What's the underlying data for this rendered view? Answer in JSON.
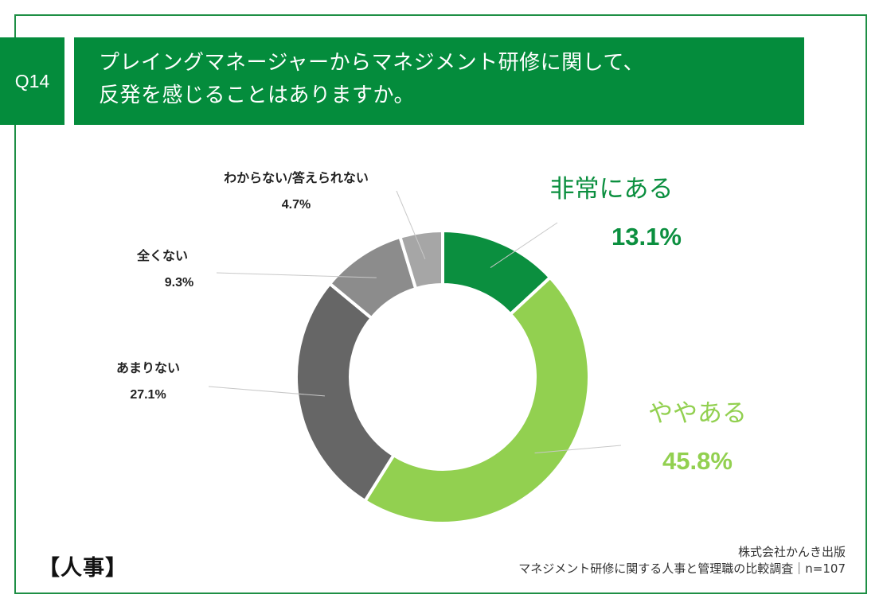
{
  "header": {
    "question_number": "Q14",
    "title_line1": "プレイングマネージャーからマネジメント研修に関して、",
    "title_line2": "反発を感じることはありますか。"
  },
  "footer": {
    "department_tag": "【人事】",
    "source_line1": "株式会社かんき出版",
    "source_line2": "マネジメント研修に関する人事と管理職の比較調査｜n=107"
  },
  "chart_data": {
    "type": "pie",
    "donut": true,
    "title": "",
    "slices": [
      {
        "label": "非常にある",
        "value": 13.1,
        "value_label": "13.1%",
        "color": "#0b8f3f"
      },
      {
        "label": "ややある",
        "value": 45.8,
        "value_label": "45.8%",
        "color": "#92d050"
      },
      {
        "label": "あまりない",
        "value": 27.1,
        "value_label": "27.1%",
        "color": "#666666"
      },
      {
        "label": "全くない",
        "value": 9.3,
        "value_label": "9.3%",
        "color": "#8c8c8c"
      },
      {
        "label": "わからない/答えられない",
        "value": 4.7,
        "value_label": "4.7%",
        "color": "#a6a6a6"
      }
    ]
  }
}
